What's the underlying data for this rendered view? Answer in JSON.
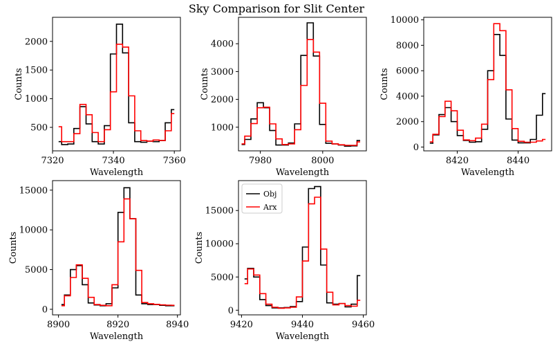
{
  "figure": {
    "title": "Sky Comparison for Slit Center"
  },
  "legend": {
    "placement": "upper-left of panel 5",
    "entries": [
      {
        "name": "Obj",
        "color": "#000000"
      },
      {
        "name": "Arx",
        "color": "#ff0000"
      }
    ]
  },
  "chart_data": [
    {
      "type": "line",
      "drawstyle": "steps-mid",
      "xlabel": "Wavelength",
      "ylabel": "Counts",
      "xlim": [
        7320,
        7362
      ],
      "ylim": [
        90,
        2420
      ],
      "xticks": [
        7320,
        7340,
        7360
      ],
      "yticks": [
        500,
        1000,
        1500,
        2000
      ],
      "x": [
        7322,
        7324,
        7326,
        7328,
        7330,
        7332,
        7334,
        7336,
        7338,
        7340,
        7342,
        7344,
        7346,
        7348,
        7350,
        7352,
        7354,
        7356,
        7358,
        7360
      ],
      "series": [
        {
          "name": "Obj",
          "color": "#000000",
          "values": [
            250,
            200,
            210,
            480,
            860,
            560,
            250,
            210,
            530,
            1780,
            2300,
            1800,
            580,
            250,
            240,
            260,
            250,
            270,
            580,
            810
          ]
        },
        {
          "name": "Arx",
          "color": "#ff0000",
          "values": [
            510,
            250,
            250,
            390,
            900,
            720,
            410,
            250,
            460,
            1120,
            1950,
            1900,
            1050,
            440,
            270,
            260,
            280,
            270,
            440,
            740
          ]
        }
      ]
    },
    {
      "type": "line",
      "drawstyle": "steps-mid",
      "xlabel": "Wavelength",
      "ylabel": "Counts",
      "xlim": [
        7973,
        8014
      ],
      "ylim": [
        150,
        4950
      ],
      "xticks": [
        7980,
        8000
      ],
      "yticks": [
        1000,
        2000,
        3000,
        4000
      ],
      "x": [
        7974,
        7976,
        7978,
        7980,
        7982,
        7984,
        7986,
        7988,
        7990,
        7992,
        7994,
        7996,
        7998,
        8000,
        8002,
        8004,
        8006,
        8008,
        8010,
        8012
      ],
      "series": [
        {
          "name": "Obj",
          "color": "#000000",
          "values": [
            380,
            560,
            1300,
            1880,
            1700,
            880,
            360,
            360,
            430,
            1120,
            3580,
            4750,
            3560,
            1100,
            420,
            400,
            360,
            320,
            330,
            520
          ]
        },
        {
          "name": "Arx",
          "color": "#ff0000",
          "values": [
            400,
            680,
            1130,
            1700,
            1720,
            1120,
            580,
            380,
            400,
            910,
            2500,
            4150,
            3700,
            1860,
            500,
            400,
            370,
            350,
            350,
            470
          ]
        }
      ]
    },
    {
      "type": "line",
      "drawstyle": "steps-mid",
      "xlabel": "Wavelength",
      "ylabel": "Counts",
      "xlim": [
        8409,
        8451
      ],
      "ylim": [
        -300,
        10200
      ],
      "xticks": [
        8420,
        8440
      ],
      "yticks": [
        0,
        2000,
        4000,
        6000,
        8000,
        10000
      ],
      "x": [
        8411,
        8413,
        8415,
        8417,
        8419,
        8421,
        8423,
        8425,
        8427,
        8429,
        8431,
        8433,
        8435,
        8437,
        8439,
        8441,
        8443,
        8445,
        8447,
        8449
      ],
      "series": [
        {
          "name": "Obj",
          "color": "#000000",
          "values": [
            300,
            950,
            2550,
            3100,
            2000,
            900,
            520,
            380,
            420,
            1400,
            6000,
            8850,
            7200,
            2200,
            550,
            330,
            330,
            600,
            2500,
            4200
          ]
        },
        {
          "name": "Arx",
          "color": "#ff0000",
          "values": [
            400,
            1000,
            2400,
            3600,
            2850,
            1320,
            560,
            500,
            700,
            1800,
            5300,
            9700,
            9150,
            4500,
            1450,
            450,
            380,
            380,
            480,
            600
          ]
        }
      ]
    },
    {
      "type": "line",
      "drawstyle": "steps-mid",
      "xlabel": "Wavelength",
      "ylabel": "Counts",
      "xlim": [
        8898,
        8941
      ],
      "ylim": [
        -700,
        16200
      ],
      "xticks": [
        8900,
        8920,
        8940
      ],
      "yticks": [
        0,
        5000,
        10000,
        15000
      ],
      "x": [
        8901,
        8903,
        8905,
        8907,
        8909,
        8911,
        8913,
        8915,
        8917,
        8919,
        8921,
        8923,
        8925,
        8927,
        8929,
        8931,
        8933,
        8935,
        8937,
        8939
      ],
      "series": [
        {
          "name": "Obj",
          "color": "#000000",
          "values": [
            600,
            1800,
            5000,
            5500,
            3100,
            800,
            550,
            450,
            700,
            2700,
            12200,
            15300,
            11400,
            1800,
            700,
            600,
            600,
            500,
            450,
            450
          ]
        },
        {
          "name": "Arx",
          "color": "#ff0000",
          "values": [
            450,
            1700,
            4000,
            5600,
            3900,
            1500,
            600,
            500,
            450,
            3100,
            8500,
            13900,
            11400,
            4900,
            850,
            700,
            620,
            560,
            520,
            500
          ]
        }
      ]
    },
    {
      "type": "line",
      "drawstyle": "steps-mid",
      "xlabel": "Wavelength",
      "ylabel": "Counts",
      "xlim": [
        9419,
        9461
      ],
      "ylim": [
        -700,
        19500
      ],
      "xticks": [
        9420,
        9440,
        9460
      ],
      "yticks": [
        0,
        5000,
        10000,
        15000
      ],
      "x": [
        9421,
        9423,
        9425,
        9427,
        9429,
        9431,
        9433,
        9435,
        9437,
        9439,
        9441,
        9443,
        9445,
        9447,
        9449,
        9451,
        9453,
        9455,
        9457,
        9459
      ],
      "series": [
        {
          "name": "Obj",
          "color": "#000000",
          "values": [
            4700,
            6300,
            5000,
            1600,
            700,
            350,
            350,
            400,
            550,
            1300,
            9500,
            18300,
            18600,
            6800,
            1100,
            900,
            1000,
            500,
            900,
            5200
          ]
        },
        {
          "name": "Arx",
          "color": "#ff0000",
          "values": [
            4000,
            6200,
            5300,
            2500,
            900,
            450,
            300,
            350,
            450,
            2000,
            7400,
            16000,
            17000,
            9200,
            2700,
            800,
            1000,
            700,
            600,
            1500
          ]
        }
      ]
    }
  ]
}
